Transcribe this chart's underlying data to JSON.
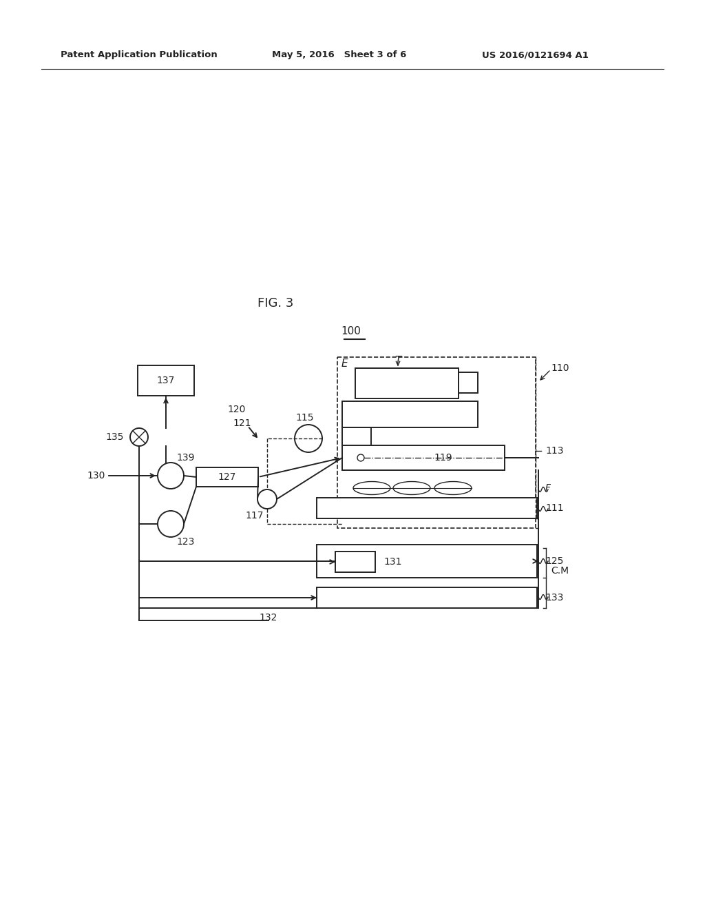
{
  "bg_color": "#ffffff",
  "title": "FIG. 3",
  "header_left": "Patent Application Publication",
  "header_mid": "May 5, 2016   Sheet 3 of 6",
  "header_right": "US 2016/0121694 A1",
  "label_100": "100",
  "label_137": "137",
  "label_135": "135",
  "label_130": "130",
  "label_139": "139",
  "label_127": "127",
  "label_123": "123",
  "label_117": "117",
  "label_120": "120",
  "label_121": "121",
  "label_115": "115",
  "label_E": "E",
  "label_T": "T",
  "label_110": "110",
  "label_113": "113",
  "label_119": "119",
  "label_F": "F",
  "label_111": "111",
  "label_CM": "C.M",
  "label_131": "131",
  "label_125": "125",
  "label_133": "133",
  "label_132": "132"
}
